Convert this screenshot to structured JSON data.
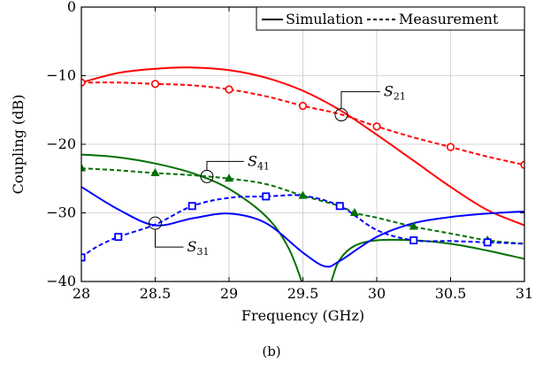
{
  "chart_data": {
    "type": "line",
    "xlabel": "Frequency (GHz)",
    "ylabel": "Coupling (dB)",
    "xlim": [
      28,
      31
    ],
    "ylim": [
      -40,
      0
    ],
    "xticks": [
      28,
      28.5,
      29,
      29.5,
      30,
      30.5,
      31
    ],
    "xtick_labels": [
      "28",
      "28.5",
      "29",
      "29.5",
      "30",
      "30.5",
      "31"
    ],
    "yticks": [
      -40,
      -30,
      -20,
      -10,
      0
    ],
    "ytick_labels": [
      "−40",
      "−30",
      "−20",
      "−10",
      "0"
    ],
    "grid": true,
    "legend_position": "top-right",
    "legend": [
      {
        "label": "Simulation",
        "style": "solid"
      },
      {
        "label": "Measurement",
        "style": "dashed"
      }
    ],
    "series": [
      {
        "param": "S21",
        "kind": "simulation",
        "color": "#ff0000",
        "style": "solid",
        "x": [
          28,
          28.25,
          28.5,
          28.75,
          29,
          29.25,
          29.5,
          29.75,
          30,
          30.25,
          30.5,
          30.75,
          31
        ],
        "y": [
          -11.0,
          -9.6,
          -9.0,
          -8.8,
          -9.2,
          -10.3,
          -12.2,
          -15.0,
          -18.6,
          -22.4,
          -26.2,
          -29.6,
          -31.8
        ]
      },
      {
        "param": "S21",
        "kind": "measurement",
        "color": "#ff0000",
        "style": "dashed",
        "marker": "circle",
        "x": [
          28,
          28.25,
          28.5,
          28.75,
          29,
          29.25,
          29.5,
          29.75,
          30,
          30.25,
          30.5,
          30.75,
          31
        ],
        "y": [
          -11.0,
          -11.0,
          -11.2,
          -11.4,
          -12.0,
          -13.0,
          -14.4,
          -15.6,
          -17.4,
          -19.0,
          -20.4,
          -21.8,
          -23.0
        ]
      },
      {
        "param": "S41",
        "kind": "simulation",
        "color": "#007000",
        "style": "solid",
        "x": [
          28,
          28.25,
          28.5,
          28.75,
          29,
          29.25,
          29.4,
          29.5,
          29.55,
          29.6,
          29.65,
          29.7,
          29.75,
          29.85,
          30,
          30.25,
          30.5,
          30.75,
          31
        ],
        "y": [
          -21.5,
          -21.9,
          -22.8,
          -24.2,
          -26.5,
          -30.5,
          -35.0,
          -40.5,
          -44.0,
          -45.0,
          -43.5,
          -39.5,
          -36.8,
          -34.8,
          -34.0,
          -34.0,
          -34.5,
          -35.5,
          -36.7
        ]
      },
      {
        "param": "S41",
        "kind": "measurement",
        "color": "#007000",
        "style": "dashed",
        "marker": "triangle",
        "x": [
          28,
          28.25,
          28.5,
          28.75,
          29,
          29.25,
          29.5,
          29.75,
          29.85,
          30,
          30.25,
          30.5,
          30.75,
          31
        ],
        "y": [
          -23.5,
          -23.8,
          -24.2,
          -24.5,
          -25.0,
          -25.8,
          -27.5,
          -29.0,
          -30.0,
          -30.7,
          -32.0,
          -33.0,
          -34.0,
          -34.5
        ]
      },
      {
        "param": "S31",
        "kind": "simulation",
        "color": "#0000ff",
        "style": "solid",
        "x": [
          28,
          28.25,
          28.5,
          28.75,
          29,
          29.25,
          29.5,
          29.65,
          29.75,
          30,
          30.25,
          30.5,
          30.75,
          31
        ],
        "y": [
          -26.2,
          -29.5,
          -31.8,
          -30.8,
          -30.1,
          -31.5,
          -35.8,
          -37.8,
          -37.0,
          -33.5,
          -31.5,
          -30.6,
          -30.1,
          -29.8
        ]
      },
      {
        "param": "S31",
        "kind": "measurement",
        "color": "#0000ff",
        "style": "dashed",
        "marker": "square",
        "x": [
          28,
          28.1,
          28.25,
          28.5,
          28.75,
          29,
          29.25,
          29.5,
          29.75,
          30,
          30.25,
          30.5,
          30.75,
          31
        ],
        "y": [
          -36.5,
          -35.0,
          -33.5,
          -31.7,
          -29.0,
          -27.8,
          -27.6,
          -27.5,
          -29.0,
          -32.5,
          -34.0,
          -34.1,
          -34.3,
          -34.5
        ]
      }
    ],
    "annotations": [
      {
        "text": "S",
        "sub": "21",
        "at": [
          29.76,
          -15.7
        ]
      },
      {
        "text": "S",
        "sub": "41",
        "at": [
          28.85,
          -24.7
        ]
      },
      {
        "text": "S",
        "sub": "31",
        "at": [
          28.5,
          -31.5
        ]
      }
    ],
    "caption": "(b)"
  }
}
